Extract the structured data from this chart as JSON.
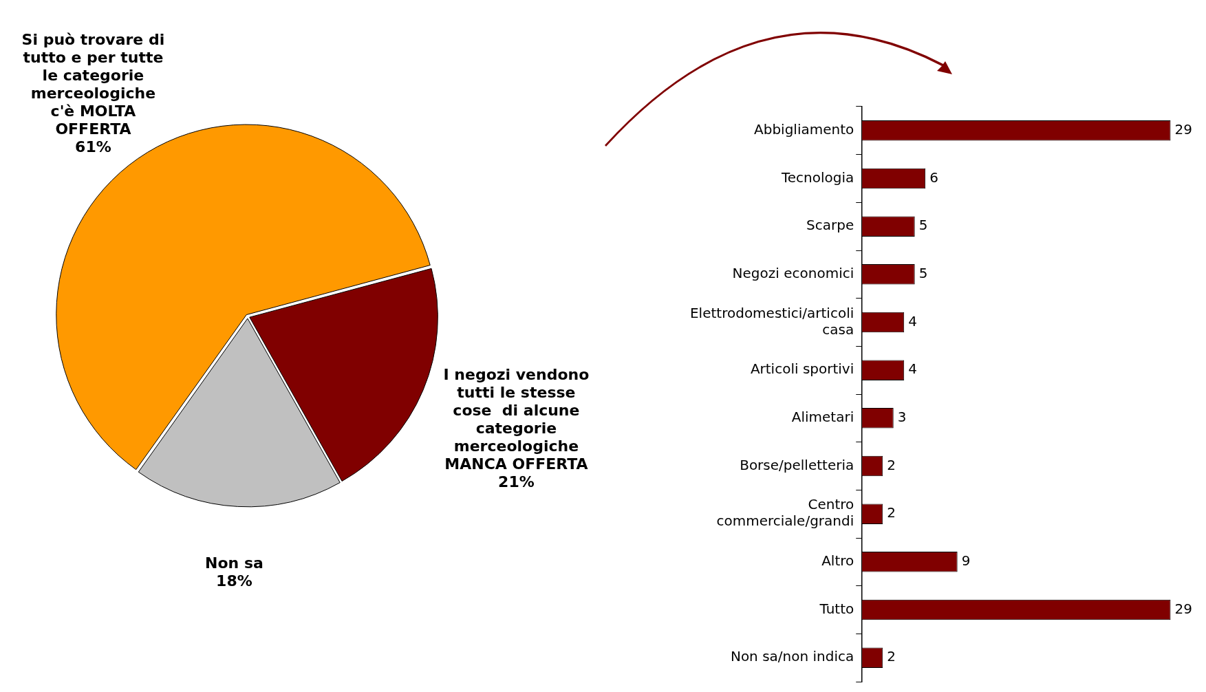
{
  "chart_data": [
    {
      "type": "pie",
      "categories": [
        "Si può trovare di tutto e per tutte le categorie merceologiche c'è MOLTA OFFERTA",
        "I negozi vendono tutti le stesse cose  di alcune categorie merceologiche MANCA OFFERTA",
        "Non sa"
      ],
      "values": [
        61,
        21,
        18
      ],
      "colors": [
        "#ff9900",
        "#800000",
        "#c0c0c0"
      ],
      "value_labels": [
        "61%",
        "21%",
        "18%"
      ]
    },
    {
      "type": "bar",
      "orientation": "horizontal",
      "categories": [
        "Abbigliamento",
        "Tecnologia",
        "Scarpe",
        "Negozi economici",
        "Elettrodomestici/articoli casa",
        "Articoli sportivi",
        "Alimetari",
        "Borse/pelletteria",
        "Centro commerciale/grandi",
        "Altro",
        "Tutto",
        "Non sa/non indica"
      ],
      "values": [
        29,
        6,
        5,
        5,
        4,
        4,
        3,
        2,
        2,
        9,
        29,
        2
      ],
      "color": "#800000",
      "data_labels": true,
      "grid": false
    }
  ]
}
